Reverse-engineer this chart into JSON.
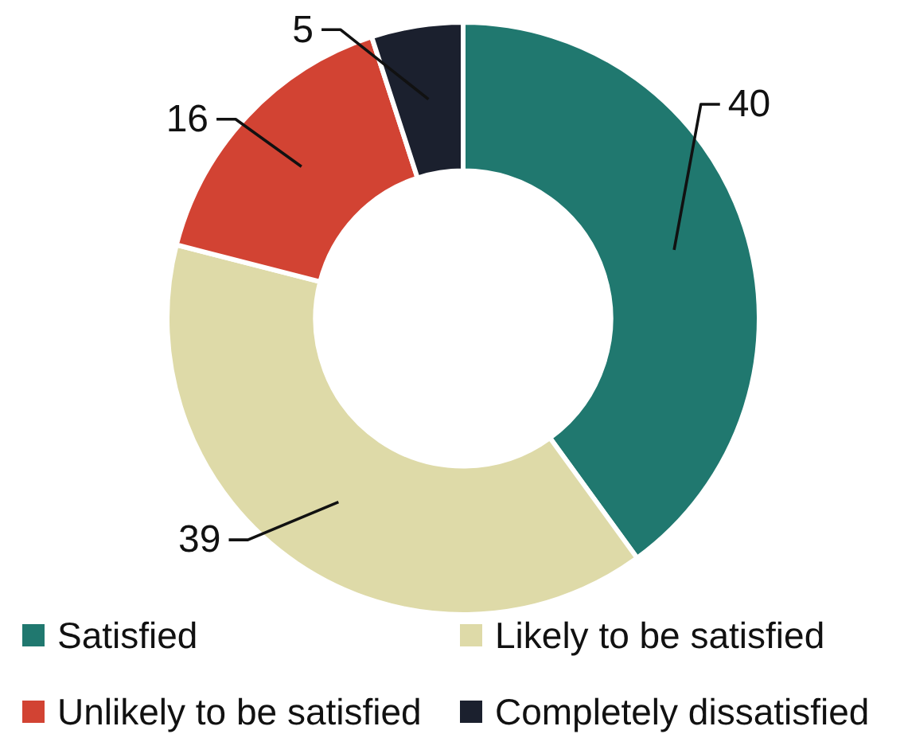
{
  "chart_data": {
    "type": "donut",
    "categories": [
      "Satisfied",
      "Likely to be satisfied",
      "Unlikely to be satisfied",
      "Completely dissatisfied"
    ],
    "values": [
      40,
      39,
      16,
      5
    ],
    "colors": [
      "#20786f",
      "#dedaa8",
      "#d24333",
      "#1b202e"
    ],
    "data_labels": true,
    "legend": "bottom"
  }
}
